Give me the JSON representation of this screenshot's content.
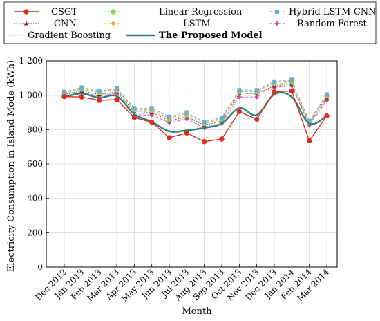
{
  "chart_data": {
    "type": "line",
    "title": "",
    "xlabel": "Month",
    "ylabel": "Electricity Consumption in Island Mode (kWh)",
    "ylim": [
      0,
      1200
    ],
    "yticks": [
      0,
      200,
      400,
      600,
      800,
      1000,
      1200
    ],
    "ytick_labels": [
      "0",
      "200",
      "400",
      "600",
      "800",
      "1 000",
      "1 200"
    ],
    "grid": true,
    "legend_position": "top",
    "categories": [
      "Dec 2012",
      "Jan 2013",
      "Feb 2013",
      "Mar 2013",
      "Apr 2013",
      "May 2013",
      "Jun 2013",
      "Jul 2013",
      "Aug 2013",
      "Sep 2013",
      "Oct 2013",
      "Nov 2013",
      "Dec 2013",
      "Jan 2014",
      "Feb 2014",
      "Mar 2014"
    ],
    "series": [
      {
        "name": "CSGT",
        "color": "#d7301f",
        "marker": "circle",
        "style": "solid",
        "values": [
          992,
          990,
          970,
          975,
          870,
          843,
          753,
          780,
          730,
          745,
          905,
          860,
          1020,
          1025,
          735,
          880
        ]
      },
      {
        "name": "Linear Regression",
        "color": "#7ed957",
        "marker": "circle",
        "style": "dashed",
        "values": [
          1010,
          1035,
          1015,
          1030,
          915,
          910,
          860,
          885,
          835,
          860,
          1020,
          1020,
          1065,
          1075,
          840,
          995
        ]
      },
      {
        "name": "Hybrid LSTM-CNN",
        "color": "#6fa8dc",
        "marker": "square",
        "style": "dashed",
        "values": [
          1020,
          1045,
          1025,
          1040,
          925,
          925,
          875,
          900,
          845,
          870,
          1030,
          1030,
          1080,
          1090,
          850,
          1005
        ]
      },
      {
        "name": "CNN",
        "color": "#8b1a3a",
        "marker": "triangle",
        "style": "dotted",
        "values": [
          1005,
          1025,
          1005,
          1020,
          905,
          900,
          850,
          875,
          825,
          850,
          1010,
          1010,
          1055,
          1065,
          835,
          985
        ]
      },
      {
        "name": "LSTM",
        "color": "#f39c3c",
        "marker": "diamond",
        "style": "dashed",
        "values": [
          1015,
          1040,
          1020,
          1035,
          920,
          915,
          865,
          895,
          840,
          865,
          1025,
          1025,
          1075,
          1085,
          845,
          1000
        ]
      },
      {
        "name": "Random Forest",
        "color": "#d6489c",
        "marker": "diamond",
        "style": "dashed",
        "values": [
          995,
          1015,
          995,
          1010,
          885,
          885,
          840,
          860,
          810,
          835,
          990,
          990,
          1045,
          1055,
          825,
          970
        ]
      },
      {
        "name": "Gradient Boosting",
        "color": "#b7b7b7",
        "marker": "none",
        "style": "dotted",
        "values": [
          1000,
          1020,
          1000,
          1015,
          895,
          890,
          845,
          865,
          815,
          840,
          1000,
          1000,
          1050,
          1060,
          830,
          975
        ]
      },
      {
        "name": "The Proposed Model",
        "color": "#2a7f7f",
        "marker": "none",
        "style": "solid-thick",
        "values": [
          990,
          1010,
          985,
          995,
          890,
          845,
          790,
          795,
          810,
          835,
          925,
          885,
          1005,
          990,
          835,
          880
        ]
      }
    ]
  },
  "legend": {
    "items": [
      {
        "label": "CSGT",
        "bold": false
      },
      {
        "label": "Linear Regression",
        "bold": false
      },
      {
        "label": "Hybrid LSTM-CNN",
        "bold": false
      },
      {
        "label": "CNN",
        "bold": false
      },
      {
        "label": "LSTM",
        "bold": false
      },
      {
        "label": "Random Forest",
        "bold": false
      },
      {
        "label": "Gradient Boosting",
        "bold": false
      },
      {
        "label": "The Proposed Model",
        "bold": true
      }
    ]
  }
}
